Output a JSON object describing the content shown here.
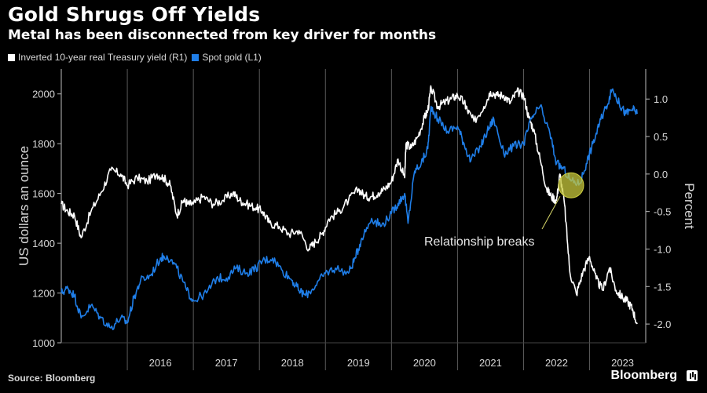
{
  "header": {
    "title": "Gold Shrugs Off Yields",
    "subtitle": "Metal has been disconnected from key driver for months"
  },
  "footer": {
    "source": "Source: Bloomberg",
    "brand": "Bloomberg"
  },
  "chart_data": {
    "type": "line",
    "title": "Gold Shrugs Off Yields",
    "subtitle": "Metal has been disconnected from key driver for months",
    "ylabel": "US dollars an ounce",
    "y2label": "Percent",
    "ylim": [
      1000,
      2100
    ],
    "y2lim": [
      -2.25,
      1.4
    ],
    "xlim": [
      2015.0,
      2023.85
    ],
    "x_ticks": [
      "2016",
      "2017",
      "2018",
      "2019",
      "2020",
      "2021",
      "2022",
      "2023"
    ],
    "y_ticks": [
      "1000",
      "1200",
      "1400",
      "1600",
      "1800",
      "2000"
    ],
    "y2_ticks": [
      "-2.0",
      "-1.5",
      "-1.0",
      "-0.5",
      "0.0",
      "0.5",
      "1.0"
    ],
    "grid": "vertical year separators",
    "legend_position": "top-left",
    "annotation": {
      "text": "Relationship breaks",
      "x": 2022.72,
      "y2": -0.15
    },
    "series": [
      {
        "name": "Inverted 10-year real Treasury yield (R1)",
        "axis": "right",
        "color": "#ffffff",
        "x": [
          2015.0,
          2015.1,
          2015.2,
          2015.3,
          2015.45,
          2015.6,
          2015.75,
          2015.9,
          2016.0,
          2016.15,
          2016.3,
          2016.45,
          2016.55,
          2016.65,
          2016.75,
          2016.85,
          2016.92,
          2017.0,
          2017.15,
          2017.3,
          2017.45,
          2017.6,
          2017.7,
          2017.8,
          2017.95,
          2018.05,
          2018.15,
          2018.3,
          2018.45,
          2018.6,
          2018.75,
          2018.85,
          2018.95,
          2019.05,
          2019.2,
          2019.35,
          2019.5,
          2019.6,
          2019.7,
          2019.8,
          2019.9,
          2020.0,
          2020.1,
          2020.2,
          2020.22,
          2020.3,
          2020.4,
          2020.5,
          2020.55,
          2020.6,
          2020.7,
          2020.8,
          2020.9,
          2021.0,
          2021.1,
          2021.15,
          2021.25,
          2021.4,
          2021.5,
          2021.6,
          2021.7,
          2021.8,
          2021.9,
          2022.0,
          2022.08,
          2022.15,
          2022.25,
          2022.35,
          2022.42,
          2022.5,
          2022.55,
          2022.62,
          2022.7,
          2022.8,
          2022.9,
          2023.0,
          2023.1,
          2023.2,
          2023.3,
          2023.4,
          2023.5,
          2023.58,
          2023.65,
          2023.72
        ],
        "values": [
          -0.4,
          -0.5,
          -0.55,
          -0.85,
          -0.5,
          -0.25,
          0.05,
          0.0,
          -0.15,
          -0.05,
          -0.1,
          0.0,
          -0.05,
          -0.15,
          -0.55,
          -0.35,
          -0.4,
          -0.4,
          -0.3,
          -0.4,
          -0.35,
          -0.25,
          -0.35,
          -0.4,
          -0.45,
          -0.5,
          -0.65,
          -0.7,
          -0.8,
          -0.75,
          -1.0,
          -0.9,
          -0.8,
          -0.6,
          -0.5,
          -0.35,
          -0.2,
          -0.3,
          -0.3,
          -0.25,
          -0.2,
          -0.1,
          0.2,
          -0.05,
          0.4,
          0.35,
          0.5,
          0.75,
          0.85,
          1.15,
          0.9,
          0.95,
          1.0,
          1.05,
          0.95,
          0.85,
          0.7,
          0.9,
          1.1,
          1.05,
          1.05,
          0.95,
          1.1,
          1.05,
          0.75,
          0.6,
          0.2,
          -0.2,
          -0.3,
          -0.35,
          0.0,
          -0.4,
          -1.3,
          -1.6,
          -1.3,
          -1.1,
          -1.4,
          -1.55,
          -1.25,
          -1.55,
          -1.65,
          -1.7,
          -1.8,
          -2.0
        ]
      },
      {
        "name": "Spot gold (L1)",
        "axis": "left",
        "color": "#1f7ee8",
        "x": [
          2015.0,
          2015.1,
          2015.2,
          2015.3,
          2015.45,
          2015.6,
          2015.75,
          2015.9,
          2016.0,
          2016.1,
          2016.2,
          2016.35,
          2016.5,
          2016.6,
          2016.75,
          2016.9,
          2017.0,
          2017.2,
          2017.35,
          2017.5,
          2017.65,
          2017.8,
          2017.95,
          2018.05,
          2018.2,
          2018.35,
          2018.5,
          2018.6,
          2018.7,
          2018.85,
          2019.0,
          2019.15,
          2019.35,
          2019.45,
          2019.55,
          2019.7,
          2019.85,
          2020.0,
          2020.1,
          2020.2,
          2020.25,
          2020.35,
          2020.45,
          2020.55,
          2020.6,
          2020.7,
          2020.85,
          2021.0,
          2021.1,
          2021.2,
          2021.35,
          2021.45,
          2021.55,
          2021.7,
          2021.85,
          2022.0,
          2022.12,
          2022.25,
          2022.4,
          2022.5,
          2022.6,
          2022.72,
          2022.85,
          2022.95,
          2023.05,
          2023.15,
          2023.25,
          2023.35,
          2023.45,
          2023.55,
          2023.65,
          2023.72
        ],
        "values": [
          1200,
          1220,
          1190,
          1100,
          1150,
          1100,
          1060,
          1100,
          1080,
          1180,
          1250,
          1270,
          1340,
          1350,
          1300,
          1210,
          1170,
          1200,
          1260,
          1260,
          1300,
          1280,
          1300,
          1330,
          1340,
          1290,
          1250,
          1210,
          1190,
          1230,
          1280,
          1300,
          1280,
          1340,
          1420,
          1500,
          1470,
          1520,
          1560,
          1600,
          1480,
          1690,
          1720,
          1780,
          1950,
          1900,
          1850,
          1870,
          1800,
          1730,
          1790,
          1850,
          1900,
          1760,
          1790,
          1800,
          1900,
          1950,
          1840,
          1720,
          1700,
          1650,
          1640,
          1720,
          1800,
          1880,
          1950,
          2020,
          1960,
          1920,
          1940,
          1920
        ]
      }
    ]
  }
}
